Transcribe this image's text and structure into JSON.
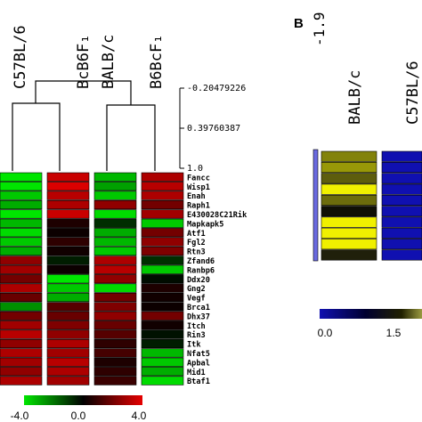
{
  "chart_data": [
    {
      "panel": "",
      "type": "heatmap",
      "columns": [
        "C57BL/6",
        "BcB6F₁",
        "BALB/c",
        "B6BcF₁"
      ],
      "rows": [
        "Fancc",
        "Wisp1",
        "Enah",
        "Raph1",
        "E430028C21Rik",
        "Mapkapk5",
        "Atf1",
        "Fgl2",
        "Rtn3",
        "Zfand6",
        "Ranbp6",
        "Ddx20",
        "Gng2",
        "Vegf",
        "Brca1",
        "Dhx37",
        "Itch",
        "Rin3",
        "Itk",
        "Nfat5",
        "Apbal",
        "Mid1",
        "Btaf1"
      ],
      "values": [
        [
          -4.0,
          3.5,
          -3.2,
          3.0
        ],
        [
          -4.0,
          3.8,
          -2.8,
          3.2
        ],
        [
          -3.5,
          3.2,
          -3.5,
          3.0
        ],
        [
          -3.0,
          3.0,
          2.5,
          2.0
        ],
        [
          -4.0,
          3.5,
          -3.8,
          2.8
        ],
        [
          -3.2,
          0.5,
          -0.8,
          -3.5
        ],
        [
          -3.8,
          0.2,
          -3.0,
          2.0
        ],
        [
          -3.5,
          0.8,
          -3.2,
          2.5
        ],
        [
          -3.0,
          0.3,
          -3.5,
          2.2
        ],
        [
          2.5,
          -0.5,
          3.0,
          -0.8
        ],
        [
          2.8,
          0.2,
          3.2,
          -3.5
        ],
        [
          2.0,
          -4.0,
          2.5,
          -0.2
        ],
        [
          3.0,
          -3.5,
          -3.8,
          0.5
        ],
        [
          1.8,
          -3.0,
          2.0,
          0.3
        ],
        [
          -2.5,
          1.5,
          2.2,
          0.2
        ],
        [
          2.0,
          1.8,
          2.5,
          2.0
        ],
        [
          2.8,
          2.2,
          1.8,
          0.3
        ],
        [
          3.2,
          2.5,
          1.5,
          -0.3
        ],
        [
          2.5,
          3.0,
          0.8,
          -0.5
        ],
        [
          3.0,
          2.8,
          1.2,
          -3.2
        ],
        [
          2.8,
          3.2,
          0.5,
          -3.5
        ],
        [
          2.5,
          3.0,
          0.8,
          -3.0
        ],
        [
          3.0,
          2.8,
          1.0,
          -3.8
        ]
      ],
      "dendrogram_scale": [
        "-0.20479226",
        "0.39760387",
        "1.0"
      ],
      "color_scale": {
        "min": -4.0,
        "mid": 0.0,
        "max": 4.0,
        "tick_labels": [
          "-4.0",
          "0.0",
          "4.0"
        ],
        "low_color": "#00e600",
        "mid_color": "#000000",
        "high_color": "#e60000"
      }
    },
    {
      "panel": "B",
      "type": "heatmap",
      "columns": [
        "BALB/c",
        "C57BL/6"
      ],
      "values": [
        [
          1.5,
          0.0
        ],
        [
          1.8,
          0.0
        ],
        [
          1.0,
          0.0
        ],
        [
          3.0,
          0.0
        ],
        [
          1.2,
          0.0
        ],
        [
          0.2,
          0.0
        ],
        [
          3.0,
          0.0
        ],
        [
          3.0,
          0.0
        ],
        [
          3.0,
          0.0
        ],
        [
          0.4,
          0.0
        ]
      ],
      "header_glyph": "-1.9",
      "color_scale": {
        "min": 0.0,
        "max": 3.0,
        "tick_labels": [
          "0.0",
          "1.5"
        ],
        "low_color": "#1010b0",
        "mid_color": "#000000",
        "high_color": "#f0f000"
      }
    }
  ]
}
